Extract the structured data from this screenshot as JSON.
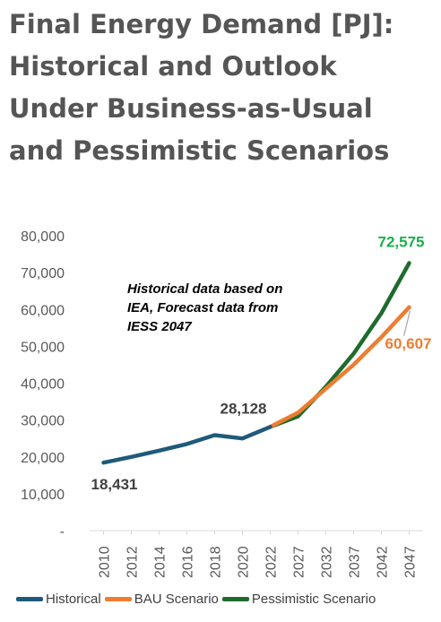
{
  "chart_data": {
    "type": "line",
    "title": "Final Energy Demand [PJ]: Historical and Outlook Under Business-as-Usual and Pessimistic Scenarios",
    "categories": [
      "2010",
      "2012",
      "2014",
      "2016",
      "2018",
      "2020",
      "2022",
      "2027",
      "2032",
      "2037",
      "2042",
      "2047"
    ],
    "ylim": [
      0,
      80000
    ],
    "yticks": [
      {
        "value": 0,
        "label": "-"
      },
      {
        "value": 10000,
        "label": "10,000"
      },
      {
        "value": 20000,
        "label": "20,000"
      },
      {
        "value": 30000,
        "label": "30,000"
      },
      {
        "value": 40000,
        "label": "40,000"
      },
      {
        "value": 50000,
        "label": "50,000"
      },
      {
        "value": 60000,
        "label": "60,000"
      },
      {
        "value": 70000,
        "label": "70,000"
      },
      {
        "value": 80000,
        "label": "80,000"
      }
    ],
    "grid": false,
    "legend": "bottom",
    "series": [
      {
        "name": "Historical",
        "color": "#1f5a7a",
        "values": [
          18431,
          20000,
          21700,
          23500,
          25900,
          25000,
          28128,
          null,
          null,
          null,
          null,
          null
        ]
      },
      {
        "name": "BAU Scenario",
        "color": "#ed7d31",
        "values": [
          null,
          null,
          null,
          null,
          null,
          null,
          28128,
          32000,
          38500,
          45000,
          52500,
          60607
        ]
      },
      {
        "name": "Pessimistic Scenario",
        "color": "#1e6b2e",
        "values": [
          null,
          null,
          null,
          null,
          null,
          null,
          28128,
          31000,
          39000,
          48000,
          59000,
          72575
        ]
      }
    ],
    "data_labels": [
      {
        "text": "18,431",
        "category": "2010",
        "value": 18431,
        "color": "#404040"
      },
      {
        "text": "28,128",
        "category": "2022",
        "value": 28128,
        "color": "#404040"
      },
      {
        "text": "72,575",
        "category": "2047",
        "value": 72575,
        "color": "#1ab04a"
      },
      {
        "text": "60,607",
        "category": "2047",
        "value": 60607,
        "color": "#ed7d31"
      }
    ],
    "annotation": [
      "Historical data based on",
      "IEA, Forecast data from",
      "IESS 2047"
    ]
  }
}
